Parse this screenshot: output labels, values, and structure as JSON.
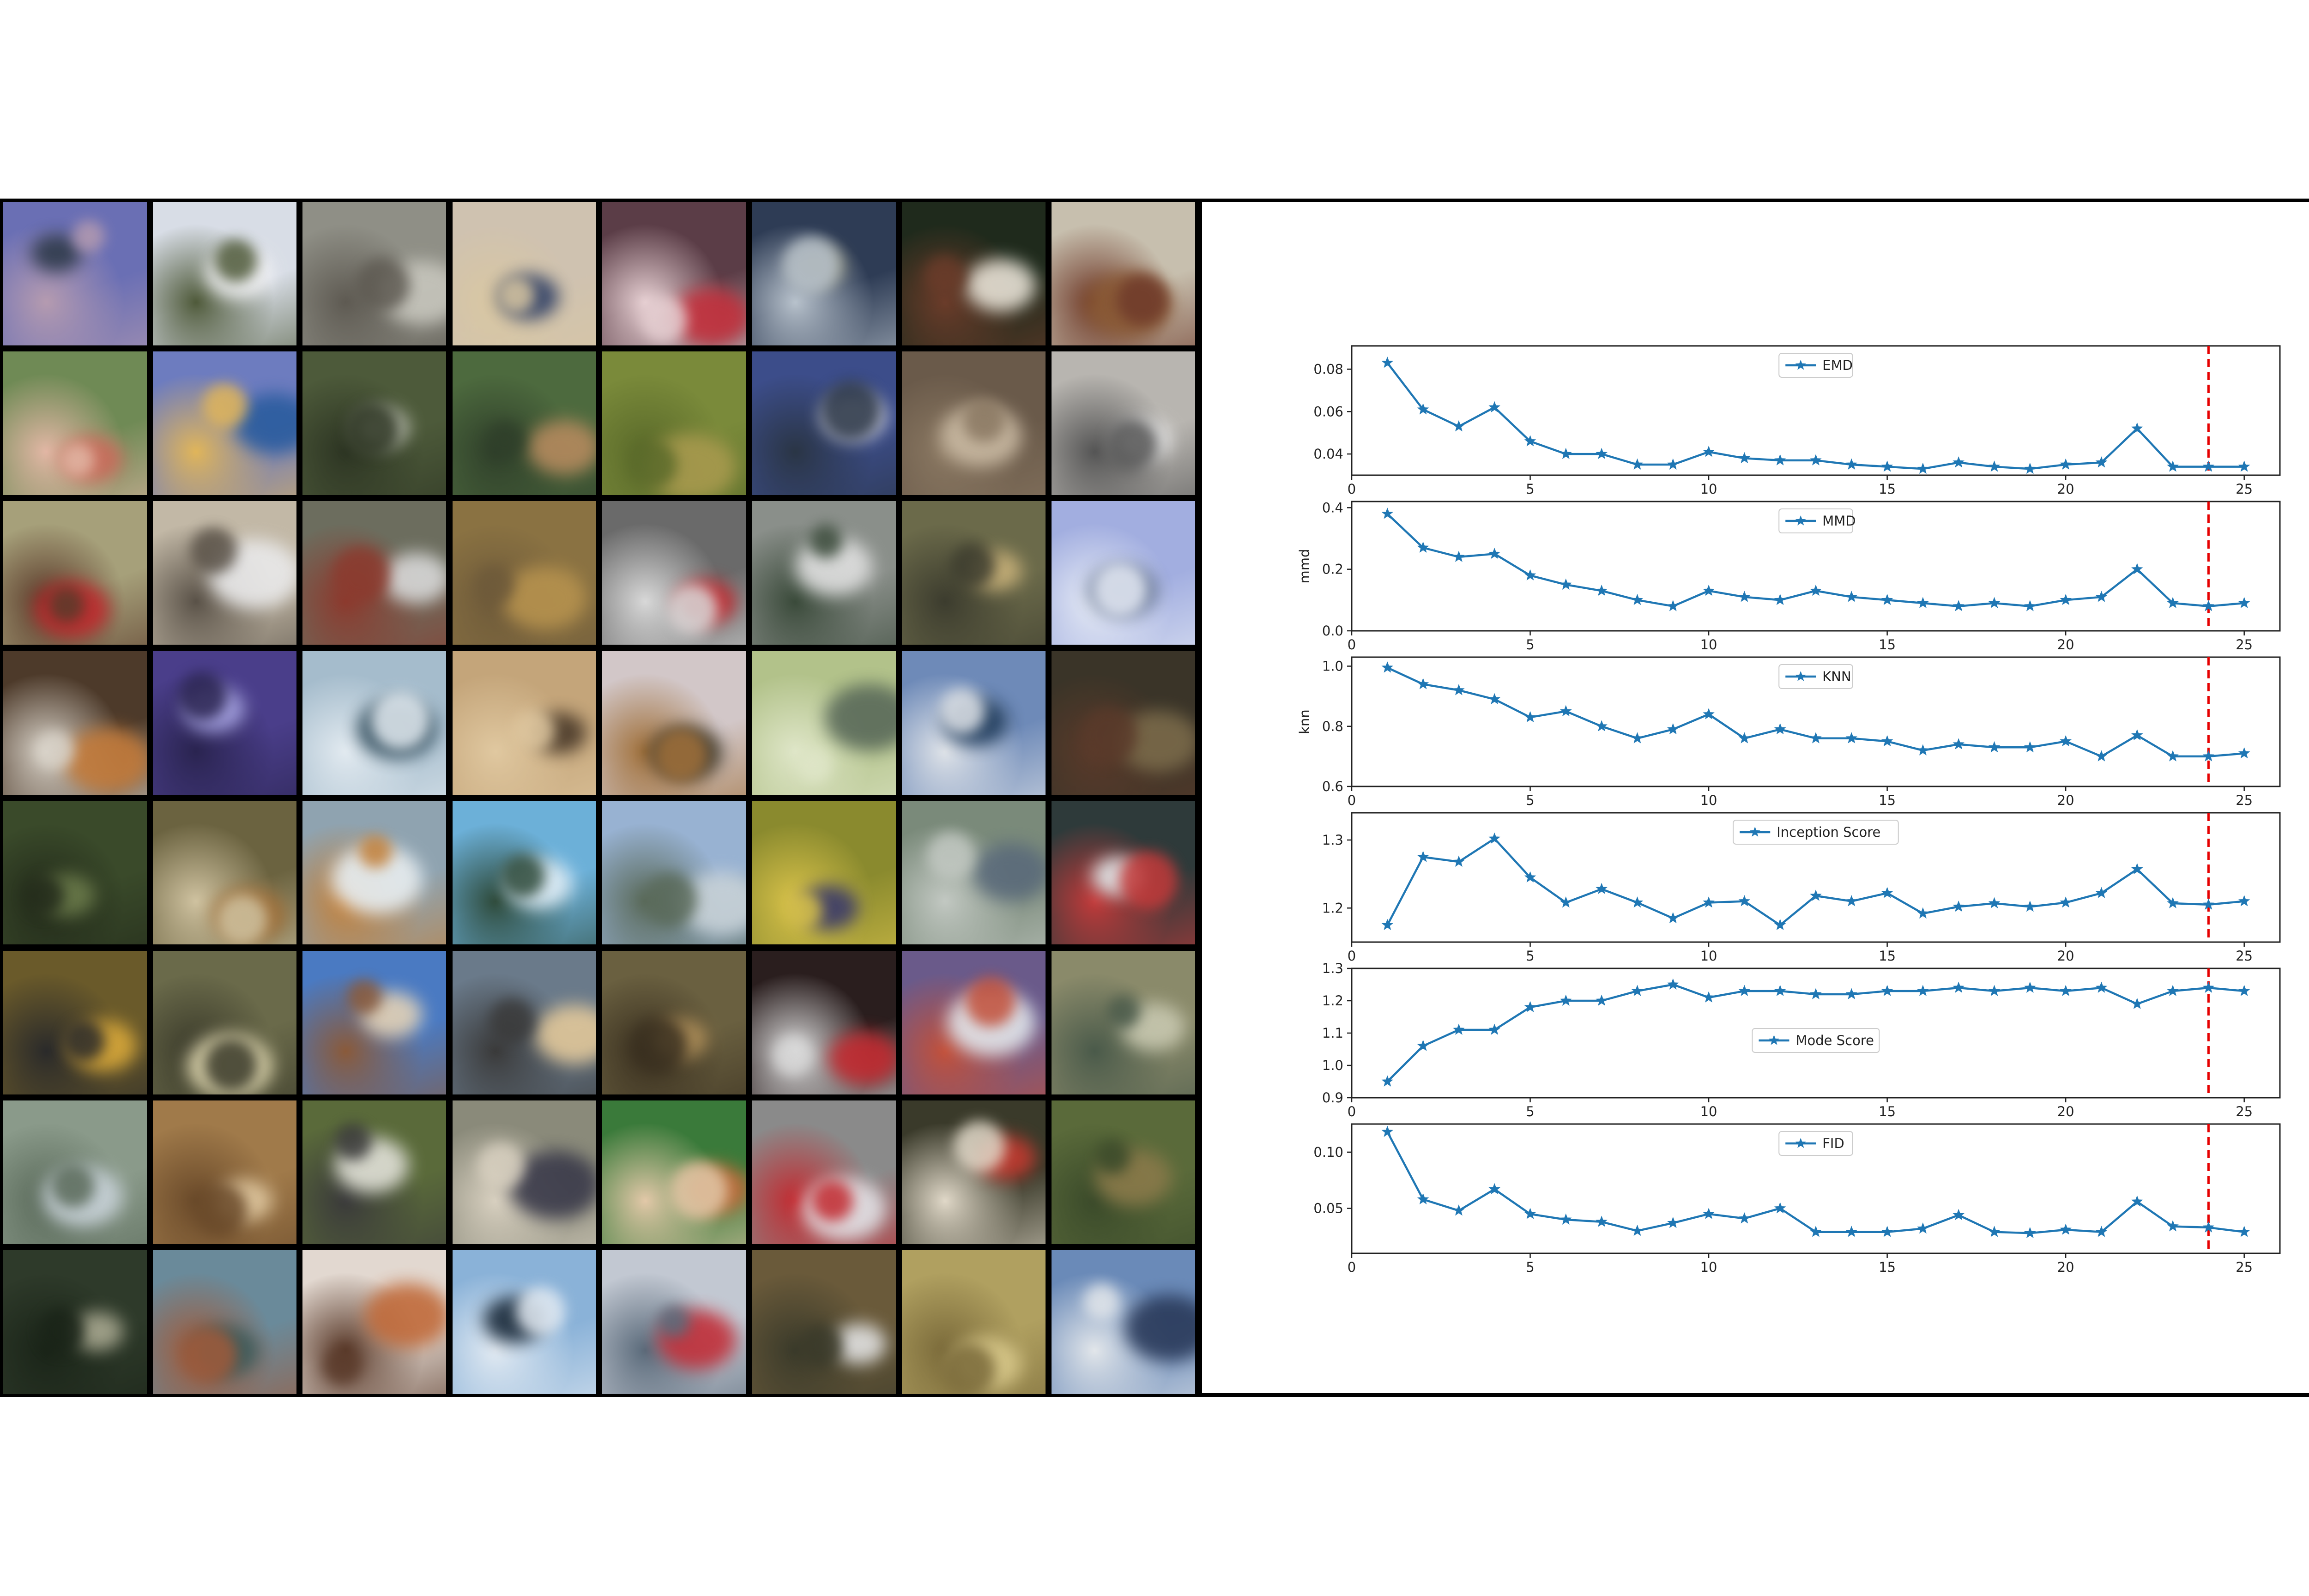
{
  "sample_grid": {
    "rows": 8,
    "cols": 8,
    "tiles": [
      {
        "bg": "#6a6fb4",
        "c1": "#2e3a4a",
        "c2": "#b59bb0"
      },
      {
        "bg": "#d8dde6",
        "c1": "#f2f2f4",
        "c2": "#4f5a3a"
      },
      {
        "bg": "#8f8f86",
        "c1": "#c7c6bd",
        "c2": "#5e5a52"
      },
      {
        "bg": "#cfc2b0",
        "c1": "#2d3e66",
        "c2": "#d9c7a2"
      },
      {
        "bg": "#5b3d47",
        "c1": "#c2303c",
        "c2": "#e6cfd2"
      },
      {
        "bg": "#2e3c55",
        "c1": "#8a8a70",
        "c2": "#b8c2cc"
      },
      {
        "bg": "#1f2a1c",
        "c1": "#e8e2d6",
        "c2": "#6b3c2a"
      },
      {
        "bg": "#c7bfae",
        "c1": "#8a5a35",
        "c2": "#6f3a2a"
      },
      {
        "bg": "#6f8a55",
        "c1": "#c96a5a",
        "c2": "#e2b7a5"
      },
      {
        "bg": "#6d7cbf",
        "c1": "#2a5c9e",
        "c2": "#e0b55a"
      },
      {
        "bg": "#4d5a3a",
        "c1": "#cfd2c4",
        "c2": "#2d3523"
      },
      {
        "bg": "#4d6a3e",
        "c1": "#b58a5e",
        "c2": "#2f3f2a"
      },
      {
        "bg": "#7a8a3a",
        "c1": "#a89a4e",
        "c2": "#5a6a2a"
      },
      {
        "bg": "#3c4d8a",
        "c1": "#e1e2ea",
        "c2": "#2a3545"
      },
      {
        "bg": "#6a5a4a",
        "c1": "#c9b9a2",
        "c2": "#8a7862"
      },
      {
        "bg": "#b8b5b0",
        "c1": "#e8e8e8",
        "c2": "#555555"
      },
      {
        "bg": "#a6a07a",
        "c1": "#c02a2e",
        "c2": "#5a3a2a"
      },
      {
        "bg": "#c2b8a6",
        "c1": "#e9e9ea",
        "c2": "#5a5248"
      },
      {
        "bg": "#6c6d5e",
        "c1": "#d8d8d8",
        "c2": "#8c3a2e"
      },
      {
        "bg": "#8a7242",
        "c1": "#b6924e",
        "c2": "#6e5a3a"
      },
      {
        "bg": "#6a6a6a",
        "c1": "#c22a30",
        "c2": "#d8d8d8"
      },
      {
        "bg": "#8a8f8a",
        "c1": "#e0e0e0",
        "c2": "#3a4a3a"
      },
      {
        "bg": "#6b6a4a",
        "c1": "#c9b27a",
        "c2": "#3c3c2e"
      },
      {
        "bg": "#a2aee0",
        "c1": "#5a6a8a",
        "c2": "#e6ebf5"
      },
      {
        "bg": "#4d3a2a",
        "c1": "#c27a3a",
        "c2": "#d8d2c8"
      },
      {
        "bg": "#4a3e8a",
        "c1": "#a7a4e2",
        "c2": "#2a2450"
      },
      {
        "bg": "#a5bccc",
        "c1": "#2e4a5a",
        "c2": "#e2eaf0"
      },
      {
        "bg": "#c4a57a",
        "c1": "#4a3a2a",
        "c2": "#e0c8a0"
      },
      {
        "bg": "#d2c7c8",
        "c1": "#3e3a2e",
        "c2": "#a0703a"
      },
      {
        "bg": "#b2c28a",
        "c1": "#5a6a5a",
        "c2": "#dfe6c8"
      },
      {
        "bg": "#6e8ab8",
        "c1": "#1e3a5a",
        "c2": "#dfe3e8"
      },
      {
        "bg": "#3a3428",
        "c1": "#7a6a4a",
        "c2": "#5a3a2a"
      },
      {
        "bg": "#3a4a2a",
        "c1": "#6a7a4a",
        "c2": "#222a1a"
      },
      {
        "bg": "#6b6340",
        "c1": "#a0703a",
        "c2": "#cfc2a0"
      },
      {
        "bg": "#8fa3b0",
        "c1": "#e7eef2",
        "c2": "#c2803a"
      },
      {
        "bg": "#6cb0d8",
        "c1": "#e2eff8",
        "c2": "#2e4a3a"
      },
      {
        "bg": "#98b2d2",
        "c1": "#c8d2d8",
        "c2": "#5a6a5a"
      },
      {
        "bg": "#8a8a2e",
        "c1": "#3a3a6a",
        "c2": "#d8c24a"
      },
      {
        "bg": "#7a8a7a",
        "c1": "#5a6a7a",
        "c2": "#c2c8c2"
      },
      {
        "bg": "#2e3a3a",
        "c1": "#e2e8ea",
        "c2": "#c23a3a"
      },
      {
        "bg": "#6a5a2a",
        "c1": "#d8a83a",
        "c2": "#2a2a2a"
      },
      {
        "bg": "#6a6a4a",
        "c1": "#e0d8b0",
        "c2": "#3a3a2a"
      },
      {
        "bg": "#4a7ac2",
        "c1": "#e2d2b8",
        "c2": "#8a5a3a"
      },
      {
        "bg": "#6a7a8a",
        "c1": "#e2c89a",
        "c2": "#3a3a3a"
      },
      {
        "bg": "#6a6040",
        "c1": "#b0905a",
        "c2": "#3a3020"
      },
      {
        "bg": "#2a1e1e",
        "c1": "#c22a30",
        "c2": "#d8d8d8"
      },
      {
        "bg": "#6a5a8a",
        "c1": "#e2e6ea",
        "c2": "#c2503a"
      },
      {
        "bg": "#8a8a6a",
        "c1": "#c8c8b0",
        "c2": "#4a5a4a"
      },
      {
        "bg": "#8a9a8a",
        "c1": "#c8d2d8",
        "c2": "#5a6a5a"
      },
      {
        "bg": "#a07a4a",
        "c1": "#e0c8a0",
        "c2": "#6a4a2a"
      },
      {
        "bg": "#5a6a3a",
        "c1": "#e2e2d8",
        "c2": "#3a3a3a"
      },
      {
        "bg": "#8a8a7a",
        "c1": "#3a3a4a",
        "c2": "#d8d0c0"
      },
      {
        "bg": "#3a7a3a",
        "c1": "#c26a3a",
        "c2": "#e2c8a8"
      },
      {
        "bg": "#8a8a8a",
        "c1": "#e2e2e6",
        "c2": "#c22a30"
      },
      {
        "bg": "#3a3a2a",
        "c1": "#c23a30",
        "c2": "#e0d8c8"
      },
      {
        "bg": "#5a6a3a",
        "c1": "#8a7a4a",
        "c2": "#3a4a2a"
      },
      {
        "bg": "#2e3a2a",
        "c1": "#a8a890",
        "c2": "#1a2418"
      },
      {
        "bg": "#6a8a9a",
        "c1": "#3a5a5a",
        "c2": "#a05a3a"
      },
      {
        "bg": "#e2d8d0",
        "c1": "#c06a3a",
        "c2": "#5a3a2a"
      },
      {
        "bg": "#8ab2d8",
        "c1": "#1a2a3a",
        "c2": "#e2eaf2"
      },
      {
        "bg": "#c2c8d2",
        "c1": "#c2303a",
        "c2": "#5a6a7a"
      },
      {
        "bg": "#6a5a3a",
        "c1": "#e2e2e2",
        "c2": "#3a3a2a"
      },
      {
        "bg": "#b0a060",
        "c1": "#d8c88a",
        "c2": "#7a6a3a"
      },
      {
        "bg": "#6a8ab8",
        "c1": "#2a3a5a",
        "c2": "#e2e6ea"
      }
    ]
  },
  "chart_data": [
    {
      "type": "line",
      "legend": "EMD",
      "ylabel": "",
      "ylim": [
        0.03,
        0.091
      ],
      "yticks": [
        "0.04",
        "0.06",
        "0.08"
      ],
      "yticks_values": [
        0.04,
        0.06,
        0.08
      ],
      "x": [
        1,
        2,
        3,
        4,
        5,
        6,
        7,
        8,
        9,
        10,
        11,
        12,
        13,
        14,
        15,
        16,
        17,
        18,
        19,
        20,
        21,
        22,
        23,
        24,
        25
      ],
      "y": [
        0.083,
        0.061,
        0.053,
        0.062,
        0.046,
        0.04,
        0.04,
        0.035,
        0.035,
        0.041,
        0.038,
        0.037,
        0.037,
        0.035,
        0.034,
        0.033,
        0.036,
        0.034,
        0.033,
        0.035,
        0.036,
        0.052,
        0.034,
        0.034,
        0.034
      ],
      "legend_pos": "top-center"
    },
    {
      "type": "line",
      "legend": "MMD",
      "ylabel": "mmd",
      "ylim": [
        0.0,
        0.42
      ],
      "yticks": [
        "0.0",
        "0.2",
        "0.4"
      ],
      "yticks_values": [
        0.0,
        0.2,
        0.4
      ],
      "x": [
        1,
        2,
        3,
        4,
        5,
        6,
        7,
        8,
        9,
        10,
        11,
        12,
        13,
        14,
        15,
        16,
        17,
        18,
        19,
        20,
        21,
        22,
        23,
        24,
        25
      ],
      "y": [
        0.38,
        0.27,
        0.24,
        0.25,
        0.18,
        0.15,
        0.13,
        0.1,
        0.08,
        0.13,
        0.11,
        0.1,
        0.13,
        0.11,
        0.1,
        0.09,
        0.08,
        0.09,
        0.08,
        0.1,
        0.11,
        0.2,
        0.09,
        0.08,
        0.09
      ],
      "legend_pos": "top-center"
    },
    {
      "type": "line",
      "legend": "KNN",
      "ylabel": "knn",
      "ylim": [
        0.6,
        1.03
      ],
      "yticks": [
        "0.6",
        "0.8",
        "1.0"
      ],
      "yticks_values": [
        0.6,
        0.8,
        1.0
      ],
      "x": [
        1,
        2,
        3,
        4,
        5,
        6,
        7,
        8,
        9,
        10,
        11,
        12,
        13,
        14,
        15,
        16,
        17,
        18,
        19,
        20,
        21,
        22,
        23,
        24,
        25
      ],
      "y": [
        0.995,
        0.94,
        0.92,
        0.89,
        0.83,
        0.85,
        0.8,
        0.76,
        0.79,
        0.84,
        0.76,
        0.79,
        0.76,
        0.76,
        0.75,
        0.72,
        0.74,
        0.73,
        0.73,
        0.75,
        0.7,
        0.77,
        0.7,
        0.7,
        0.71
      ],
      "legend_pos": "top-center"
    },
    {
      "type": "line",
      "legend": "Inception Score",
      "ylabel": "",
      "ylim": [
        1.15,
        1.34
      ],
      "yticks": [
        "1.2",
        "1.3"
      ],
      "yticks_values": [
        1.2,
        1.3
      ],
      "x": [
        1,
        2,
        3,
        4,
        5,
        6,
        7,
        8,
        9,
        10,
        11,
        12,
        13,
        14,
        15,
        16,
        17,
        18,
        19,
        20,
        21,
        22,
        23,
        24,
        25
      ],
      "y": [
        1.175,
        1.275,
        1.268,
        1.302,
        1.245,
        1.208,
        1.228,
        1.208,
        1.185,
        1.208,
        1.21,
        1.175,
        1.218,
        1.21,
        1.222,
        1.192,
        1.202,
        1.207,
        1.202,
        1.208,
        1.222,
        1.257,
        1.207,
        1.205,
        1.21
      ],
      "legend_pos": "top-center"
    },
    {
      "type": "line",
      "legend": "Mode Score",
      "ylabel": "",
      "ylim": [
        0.9,
        1.3
      ],
      "yticks": [
        "0.9",
        "1.0",
        "1.1",
        "1.2",
        "1.3"
      ],
      "yticks_values": [
        0.9,
        1.0,
        1.1,
        1.2,
        1.3
      ],
      "x": [
        1,
        2,
        3,
        4,
        5,
        6,
        7,
        8,
        9,
        10,
        11,
        12,
        13,
        14,
        15,
        16,
        17,
        18,
        19,
        20,
        21,
        22,
        23,
        24,
        25
      ],
      "y": [
        0.95,
        1.06,
        1.11,
        1.11,
        1.18,
        1.2,
        1.2,
        1.23,
        1.25,
        1.21,
        1.23,
        1.23,
        1.22,
        1.22,
        1.23,
        1.23,
        1.24,
        1.23,
        1.24,
        1.23,
        1.24,
        1.19,
        1.23,
        1.24,
        1.23
      ],
      "legend_pos": "center"
    },
    {
      "type": "line",
      "legend": "FID",
      "ylabel": "",
      "ylim": [
        0.01,
        0.125
      ],
      "yticks": [
        "0.05",
        "0.10"
      ],
      "yticks_values": [
        0.05,
        0.1
      ],
      "x": [
        1,
        2,
        3,
        4,
        5,
        6,
        7,
        8,
        9,
        10,
        11,
        12,
        13,
        14,
        15,
        16,
        17,
        18,
        19,
        20,
        21,
        22,
        23,
        24,
        25
      ],
      "y": [
        0.118,
        0.058,
        0.048,
        0.067,
        0.045,
        0.04,
        0.038,
        0.03,
        0.037,
        0.045,
        0.041,
        0.05,
        0.029,
        0.029,
        0.029,
        0.032,
        0.044,
        0.029,
        0.028,
        0.031,
        0.029,
        0.056,
        0.034,
        0.033,
        0.029
      ],
      "legend_pos": "top-center"
    }
  ],
  "shared_axes": {
    "xlim": [
      0,
      26
    ],
    "xticks": [
      "0",
      "5",
      "10",
      "15",
      "20",
      "25"
    ],
    "xticks_values": [
      0,
      5,
      10,
      15,
      20,
      25
    ],
    "vline_x": 24,
    "line_color": "#1f77b4",
    "vline_color": "#e60000",
    "marker": "star",
    "grid": false
  }
}
